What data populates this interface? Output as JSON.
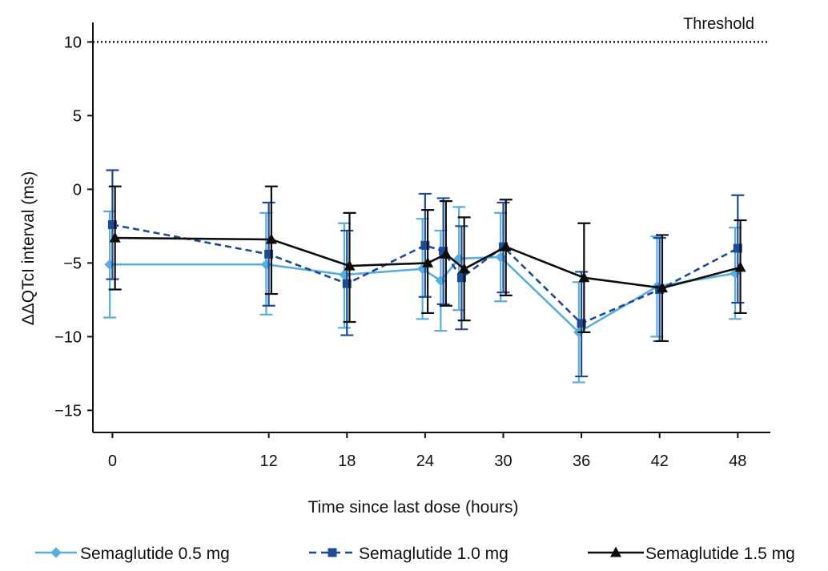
{
  "chart_data": {
    "type": "line",
    "title": "",
    "xlabel": "Time since last dose (hours)",
    "ylabel": "ΔΔQTcI interval (ms)",
    "xlim": [
      -1.5,
      50.5
    ],
    "ylim": [
      -16.5,
      11
    ],
    "x_ticks": [
      0,
      12,
      18,
      24,
      30,
      36,
      42,
      48
    ],
    "x_tick_labels": [
      "0",
      "12",
      "18",
      "24",
      "30",
      "36",
      "42",
      "48"
    ],
    "y_ticks": [
      10,
      5,
      0,
      -5,
      -10,
      -15
    ],
    "y_tick_labels": [
      "10",
      "5",
      "0",
      "−5",
      "−10",
      "−15"
    ],
    "grid": false,
    "legend_position": "bottom",
    "reference_line": {
      "value": 10,
      "label": "Threshold",
      "style": "dotted",
      "color": "#000000"
    },
    "series": [
      {
        "name": "Semaglutide 0.5 mg",
        "color": "#5aaedc",
        "marker": "diamond",
        "line_style": "solid",
        "points": [
          {
            "x": -0.2,
            "y": -5.1,
            "lo": -8.7,
            "hi": -1.5
          },
          {
            "x": 11.8,
            "y": -5.1,
            "lo": -8.5,
            "hi": -1.6
          },
          {
            "x": 17.8,
            "y": -5.8,
            "lo": -9.4,
            "hi": -2.3
          },
          {
            "x": 23.8,
            "y": -5.4,
            "lo": -8.8,
            "hi": -2.0
          },
          {
            "x": 25.2,
            "y": -6.2,
            "lo": -9.6,
            "hi": -2.8
          },
          {
            "x": 26.6,
            "y": -4.7,
            "lo": -8.2,
            "hi": -1.2
          },
          {
            "x": 29.8,
            "y": -4.6,
            "lo": -7.6,
            "hi": -1.6
          },
          {
            "x": 35.8,
            "y": -9.7,
            "lo": -13.1,
            "hi": -6.3
          },
          {
            "x": 41.8,
            "y": -6.6,
            "lo": -10.0,
            "hi": -3.2
          },
          {
            "x": 47.8,
            "y": -5.7,
            "lo": -8.8,
            "hi": -2.6
          }
        ]
      },
      {
        "name": "Semaglutide 1.0 mg",
        "color": "#1f4a94",
        "marker": "square",
        "line_style": "dashed",
        "points": [
          {
            "x": 0.0,
            "y": -2.4,
            "lo": -6.1,
            "hi": 1.3
          },
          {
            "x": 12.0,
            "y": -4.4,
            "lo": -7.9,
            "hi": -0.9
          },
          {
            "x": 18.0,
            "y": -6.4,
            "lo": -9.9,
            "hi": -2.8
          },
          {
            "x": 24.0,
            "y": -3.8,
            "lo": -7.3,
            "hi": -0.3
          },
          {
            "x": 25.4,
            "y": -4.2,
            "lo": -7.8,
            "hi": -0.6
          },
          {
            "x": 26.8,
            "y": -6.0,
            "lo": -9.5,
            "hi": -2.5
          },
          {
            "x": 30.0,
            "y": -3.9,
            "lo": -7.0,
            "hi": -0.9
          },
          {
            "x": 36.0,
            "y": -9.1,
            "lo": -12.7,
            "hi": -5.6
          },
          {
            "x": 42.0,
            "y": -6.8,
            "lo": -10.3,
            "hi": -3.3
          },
          {
            "x": 48.0,
            "y": -4.0,
            "lo": -7.7,
            "hi": -0.4
          }
        ]
      },
      {
        "name": "Semaglutide 1.5 mg",
        "color": "#0d0d0d",
        "marker": "triangle",
        "line_style": "solid",
        "points": [
          {
            "x": 0.2,
            "y": -3.3,
            "lo": -6.8,
            "hi": 0.2
          },
          {
            "x": 12.2,
            "y": -3.4,
            "lo": -7.1,
            "hi": 0.2
          },
          {
            "x": 18.2,
            "y": -5.2,
            "lo": -9.0,
            "hi": -1.6
          },
          {
            "x": 24.2,
            "y": -5.0,
            "lo": -8.4,
            "hi": -1.4
          },
          {
            "x": 25.6,
            "y": -4.4,
            "lo": -7.9,
            "hi": -0.8
          },
          {
            "x": 27.0,
            "y": -5.4,
            "lo": -8.9,
            "hi": -1.9
          },
          {
            "x": 30.2,
            "y": -3.9,
            "lo": -7.2,
            "hi": -0.7
          },
          {
            "x": 36.2,
            "y": -6.0,
            "lo": -9.7,
            "hi": -2.3
          },
          {
            "x": 42.2,
            "y": -6.7,
            "lo": -10.3,
            "hi": -3.1
          },
          {
            "x": 48.2,
            "y": -5.3,
            "lo": -8.4,
            "hi": -2.1
          }
        ]
      }
    ]
  }
}
